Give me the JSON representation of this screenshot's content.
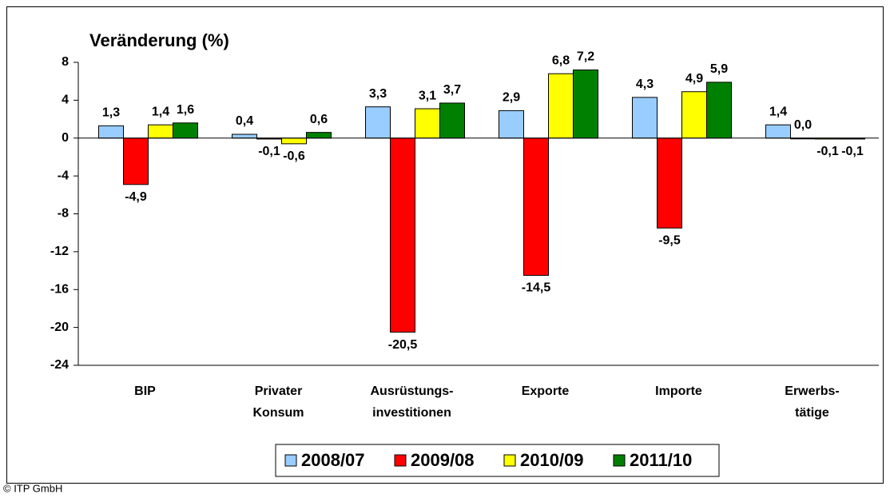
{
  "chart_data": {
    "type": "bar",
    "title": "Veränderung (%)",
    "footer": "© ITP GmbH",
    "categories": [
      [
        "BIP"
      ],
      [
        "Privater",
        "Konsum"
      ],
      [
        "Ausrüstungs-",
        "investitionen"
      ],
      [
        "Exporte"
      ],
      [
        "Importe"
      ],
      [
        "Erwerbs-",
        "tätige"
      ]
    ],
    "series": [
      {
        "name": "2008/07",
        "color": "#99ccff",
        "values": [
          1.3,
          0.4,
          3.3,
          2.9,
          4.3,
          1.4
        ],
        "value_labels": [
          "1,3",
          "0,4",
          "3,3",
          "2,9",
          "4,3",
          "1,4"
        ]
      },
      {
        "name": "2009/08",
        "color": "#ff0000",
        "values": [
          -4.9,
          -0.1,
          -20.5,
          -14.5,
          -9.5,
          0.0
        ],
        "value_labels": [
          "-4,9",
          "-0,1",
          "-20,5",
          "-14,5",
          "-9,5",
          "0,0"
        ]
      },
      {
        "name": "2010/09",
        "color": "#ffff00",
        "values": [
          1.4,
          -0.6,
          3.1,
          6.8,
          4.9,
          -0.1
        ],
        "value_labels": [
          "1,4",
          "-0,6",
          "3,1",
          "6,8",
          "4,9",
          "-0,1"
        ]
      },
      {
        "name": "2011/10",
        "color": "#008000",
        "values": [
          1.6,
          0.6,
          3.7,
          7.2,
          5.9,
          -0.1
        ],
        "value_labels": [
          "1,6",
          "0,6",
          "3,7",
          "7,2",
          "5,9",
          "-0,1"
        ]
      }
    ],
    "ylim": [
      -24,
      8
    ],
    "yticks": [
      8,
      4,
      0,
      -4,
      -8,
      -12,
      -16,
      -20,
      -24
    ],
    "grid": false,
    "legend": "bottom"
  }
}
